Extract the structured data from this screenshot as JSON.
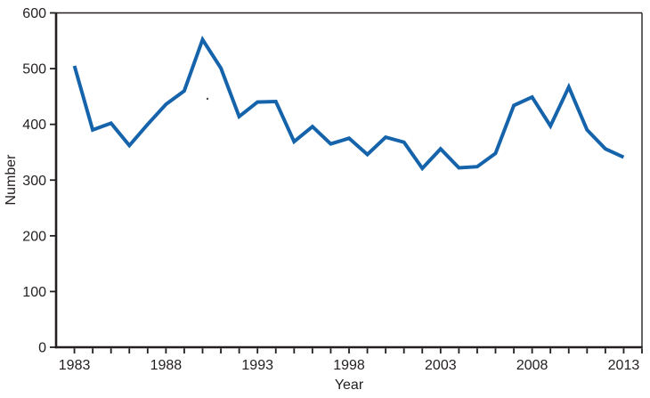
{
  "chart_data": {
    "type": "line",
    "title": "",
    "xlabel": "Year",
    "ylabel": "Number",
    "x": [
      1983,
      1984,
      1985,
      1986,
      1987,
      1988,
      1989,
      1990,
      1991,
      1992,
      1993,
      1994,
      1995,
      1996,
      1997,
      1998,
      1999,
      2000,
      2001,
      2002,
      2003,
      2004,
      2005,
      2006,
      2007,
      2008,
      2009,
      2010,
      2011,
      2012,
      2013
    ],
    "values": [
      505,
      390,
      402,
      362,
      400,
      436,
      460,
      552,
      501,
      414,
      440,
      441,
      369,
      396,
      365,
      375,
      346,
      377,
      368,
      321,
      356,
      322,
      324,
      348,
      434,
      449,
      397,
      467,
      390,
      356,
      341
    ],
    "xlim": [
      1982,
      2014
    ],
    "ylim": [
      0,
      600
    ],
    "yticks": [
      0,
      100,
      200,
      300,
      400,
      500,
      600
    ],
    "xticks_labeled": [
      1983,
      1988,
      1993,
      1998,
      2003,
      2008,
      2013
    ],
    "minor_xtick_interval": 1,
    "grid": false,
    "legend": "none",
    "line_color": "#1563ab",
    "axis_color": "#231f20"
  }
}
